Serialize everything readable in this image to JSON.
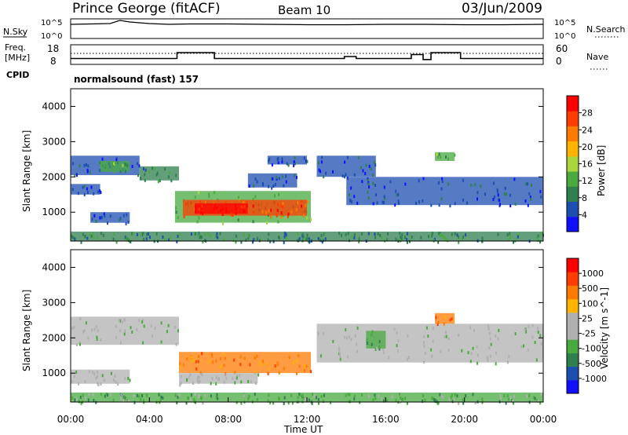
{
  "header": {
    "station": "Prince George (fitACF)",
    "beam": "Beam 10",
    "date": "03/Jun/2009"
  },
  "nsky_panel": {
    "left_label": "N.Sky",
    "left_ticks": [
      "10^5",
      "10^0"
    ],
    "right_label": "N.Search",
    "right_ticks": [
      "10^5",
      "10^0"
    ]
  },
  "freq_panel": {
    "left_label_1": "Freq.",
    "left_label_2": "[MHz]",
    "left_ticks": [
      "18",
      "8"
    ],
    "right_label": "Nave",
    "right_ticks": [
      "60",
      "0"
    ],
    "cpid_label": "CPID",
    "cpid_text": "normalsound (fast) 157"
  },
  "colors": {
    "power_scale": [
      "#1010ff",
      "#1d4fb0",
      "#2f7f4f",
      "#4aaa40",
      "#a8d63c",
      "#ffb400",
      "#ff7a00",
      "#ff3d00",
      "#ff0000"
    ],
    "velocity_scale": [
      "#1010ff",
      "#1d4fb0",
      "#2f7f4f",
      "#4aaa40",
      "#b0b0b0",
      "#b0b0b0",
      "#ffb400",
      "#ff7a00",
      "#ff3d00",
      "#ff0000"
    ],
    "ground_scatter": "#bebebe"
  },
  "chart_data": [
    {
      "type": "line",
      "name": "N.Sky / N.Search",
      "x": [
        0,
        1,
        2,
        2.5,
        3,
        4,
        5,
        6,
        8,
        10,
        12,
        14,
        16,
        18,
        20,
        22,
        24
      ],
      "series": [
        {
          "values": [
            3.6,
            3.7,
            3.8,
            4.6,
            4.2,
            3.8,
            3.6,
            3.7,
            3.7,
            3.6,
            3.5,
            3.5,
            3.6,
            3.6,
            3.5,
            3.5,
            3.6
          ]
        }
      ],
      "ylim": [
        0,
        5
      ]
    },
    {
      "type": "line",
      "name": "Freq / Nave",
      "x": [
        0,
        5.4,
        5.4,
        7.3,
        7.3,
        13.9,
        13.9,
        14.5,
        14.5,
        17.3,
        17.3,
        17.9,
        17.9,
        18.3,
        18.3,
        19.8,
        19.8,
        24
      ],
      "series": [
        {
          "name": "Freq",
          "values": [
            11,
            11,
            14,
            14,
            11,
            11,
            12,
            12,
            11,
            11,
            13,
            13,
            10.5,
            10.5,
            14,
            14,
            11,
            11
          ]
        },
        {
          "name": "Nave",
          "values": [
            30,
            30,
            30,
            30,
            30,
            30,
            30,
            30,
            30,
            30,
            30,
            30,
            30,
            30,
            30,
            30,
            30,
            30
          ]
        }
      ],
      "ylim": [
        8,
        18
      ]
    },
    {
      "type": "heatmap",
      "name": "Power",
      "ylabel": "Slant Range [km]",
      "colorbar_label": "Power [dB]",
      "colorbar_ticks": [
        "4",
        "8",
        "12",
        "16",
        "20",
        "24",
        "28"
      ],
      "yticks": [
        "1000",
        "2000",
        "3000",
        "4000"
      ],
      "ylim": [
        180,
        4500
      ],
      "xlim": [
        0,
        24
      ],
      "regions": [
        {
          "x": [
            0,
            3.5
          ],
          "y": [
            2050,
            2600
          ],
          "level": 1
        },
        {
          "x": [
            1.5,
            3.0
          ],
          "y": [
            2150,
            2450
          ],
          "level": 3
        },
        {
          "x": [
            3.5,
            5.5
          ],
          "y": [
            1900,
            2300
          ],
          "level": 2
        },
        {
          "x": [
            0,
            1.5
          ],
          "y": [
            1500,
            1800
          ],
          "level": 1
        },
        {
          "x": [
            1,
            3
          ],
          "y": [
            700,
            1000
          ],
          "level": 1
        },
        {
          "x": [
            5.3,
            12.2
          ],
          "y": [
            700,
            1600
          ],
          "level": 3
        },
        {
          "x": [
            5.7,
            12.0
          ],
          "y": [
            900,
            1350
          ],
          "level": 7
        },
        {
          "x": [
            6.3,
            9.0
          ],
          "y": [
            950,
            1250
          ],
          "level": 8
        },
        {
          "x": [
            9.0,
            11.5
          ],
          "y": [
            1700,
            2100
          ],
          "level": 1
        },
        {
          "x": [
            10.0,
            12.0
          ],
          "y": [
            2350,
            2600
          ],
          "level": 1
        },
        {
          "x": [
            12.5,
            15.5
          ],
          "y": [
            2000,
            2600
          ],
          "level": 1
        },
        {
          "x": [
            14.0,
            24.0
          ],
          "y": [
            1200,
            2000
          ],
          "level": 1
        },
        {
          "x": [
            18.5,
            19.5
          ],
          "y": [
            2450,
            2700
          ],
          "level": 3
        },
        {
          "x": [
            0,
            24
          ],
          "y": [
            180,
            450
          ],
          "level": 2
        }
      ]
    },
    {
      "type": "heatmap",
      "name": "Velocity",
      "ylabel": "Slant Range [km]",
      "xlabel": "Time UT",
      "colorbar_label": "Velocity [m s^-1]",
      "colorbar_ticks": [
        "1000",
        "500",
        "100",
        "25",
        "-25",
        "-100",
        "-500",
        "-1000"
      ],
      "yticks": [
        "1000",
        "2000",
        "3000",
        "4000"
      ],
      "xticks": [
        "00:00",
        "04:00",
        "08:00",
        "12:00",
        "16:00",
        "20:00",
        "00:00"
      ],
      "ylim": [
        180,
        4500
      ],
      "xlim": [
        0,
        24
      ],
      "regions": [
        {
          "x": [
            0,
            5.5
          ],
          "y": [
            1800,
            2600
          ],
          "level": 4
        },
        {
          "x": [
            0,
            3
          ],
          "y": [
            700,
            1100
          ],
          "level": 4
        },
        {
          "x": [
            5.5,
            12.2
          ],
          "y": [
            1000,
            1600
          ],
          "level": 7
        },
        {
          "x": [
            5.5,
            9.5
          ],
          "y": [
            700,
            1000
          ],
          "level": 4
        },
        {
          "x": [
            12.5,
            24
          ],
          "y": [
            1300,
            2400
          ],
          "level": 4
        },
        {
          "x": [
            15.0,
            16.0
          ],
          "y": [
            1700,
            2200
          ],
          "level": 3
        },
        {
          "x": [
            18.5,
            19.5
          ],
          "y": [
            2400,
            2700
          ],
          "level": 7
        },
        {
          "x": [
            0,
            24
          ],
          "y": [
            180,
            450
          ],
          "level": 3
        }
      ]
    }
  ]
}
